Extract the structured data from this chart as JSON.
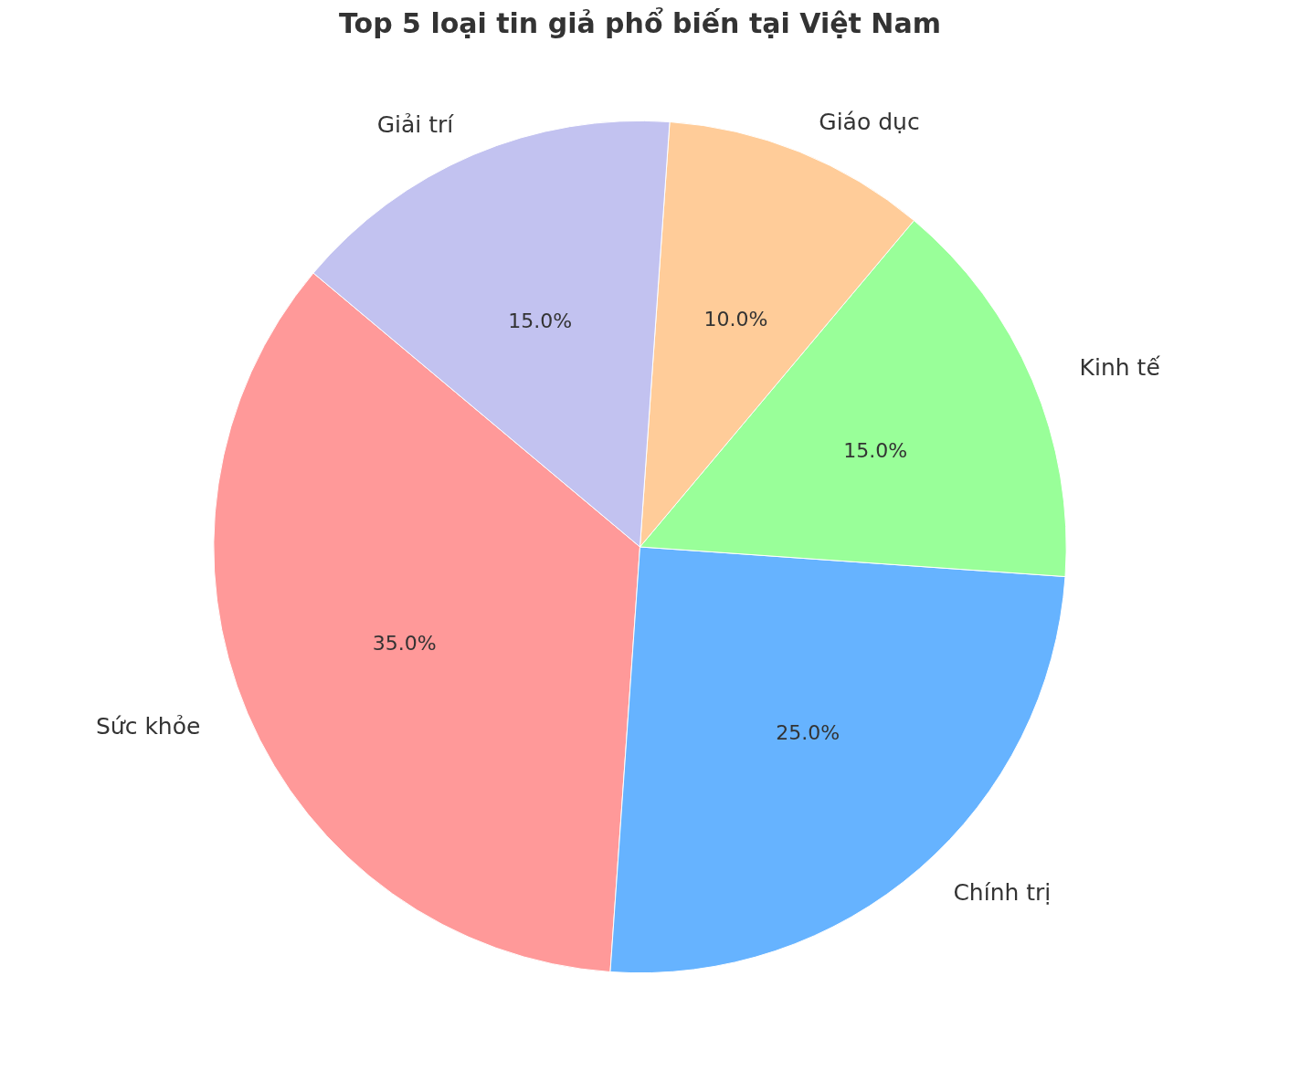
{
  "chart_data": {
    "type": "pie",
    "title": "Top 5 loại tin giả phổ biến tại Việt Nam",
    "categories": [
      "Sức khỏe",
      "Chính trị",
      "Kinh tế",
      "Giáo dục",
      "Giải trí"
    ],
    "values": [
      35,
      25,
      15,
      10,
      15
    ],
    "colors": [
      "#ff9999",
      "#66b3ff",
      "#99ff99",
      "#ffcc99",
      "#c2c2f0"
    ],
    "value_labels": [
      "35.0%",
      "25.0%",
      "15.0%",
      "10.0%",
      "15.0%"
    ]
  }
}
